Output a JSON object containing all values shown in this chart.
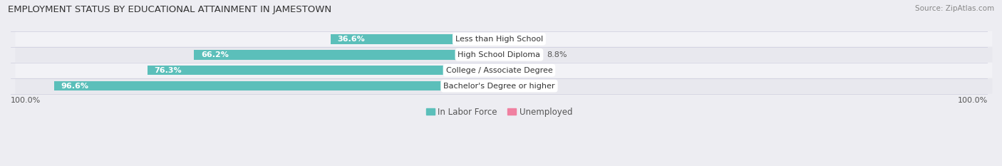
{
  "title": "EMPLOYMENT STATUS BY EDUCATIONAL ATTAINMENT IN JAMESTOWN",
  "source": "Source: ZipAtlas.com",
  "categories": [
    "Less than High School",
    "High School Diploma",
    "College / Associate Degree",
    "Bachelor's Degree or higher"
  ],
  "labor_force": [
    36.6,
    66.2,
    76.3,
    96.6
  ],
  "unemployed": [
    0.0,
    8.8,
    0.0,
    0.0
  ],
  "labor_force_color": "#5BBFBA",
  "unemployed_color": "#F080A0",
  "row_bg_colors": [
    "#F2F2F6",
    "#E8E8EE"
  ],
  "label_box_color": "#FFFFFF",
  "x_left_label": "100.0%",
  "x_right_label": "100.0%",
  "legend_labor": "In Labor Force",
  "legend_unemployed": "Unemployed",
  "title_fontsize": 9.5,
  "source_fontsize": 7.5,
  "bar_label_fontsize": 8,
  "category_fontsize": 8,
  "axis_label_fontsize": 8,
  "legend_fontsize": 8.5,
  "figwidth": 14.06,
  "figheight": 2.33,
  "dpi": 100,
  "bar_height": 0.62
}
